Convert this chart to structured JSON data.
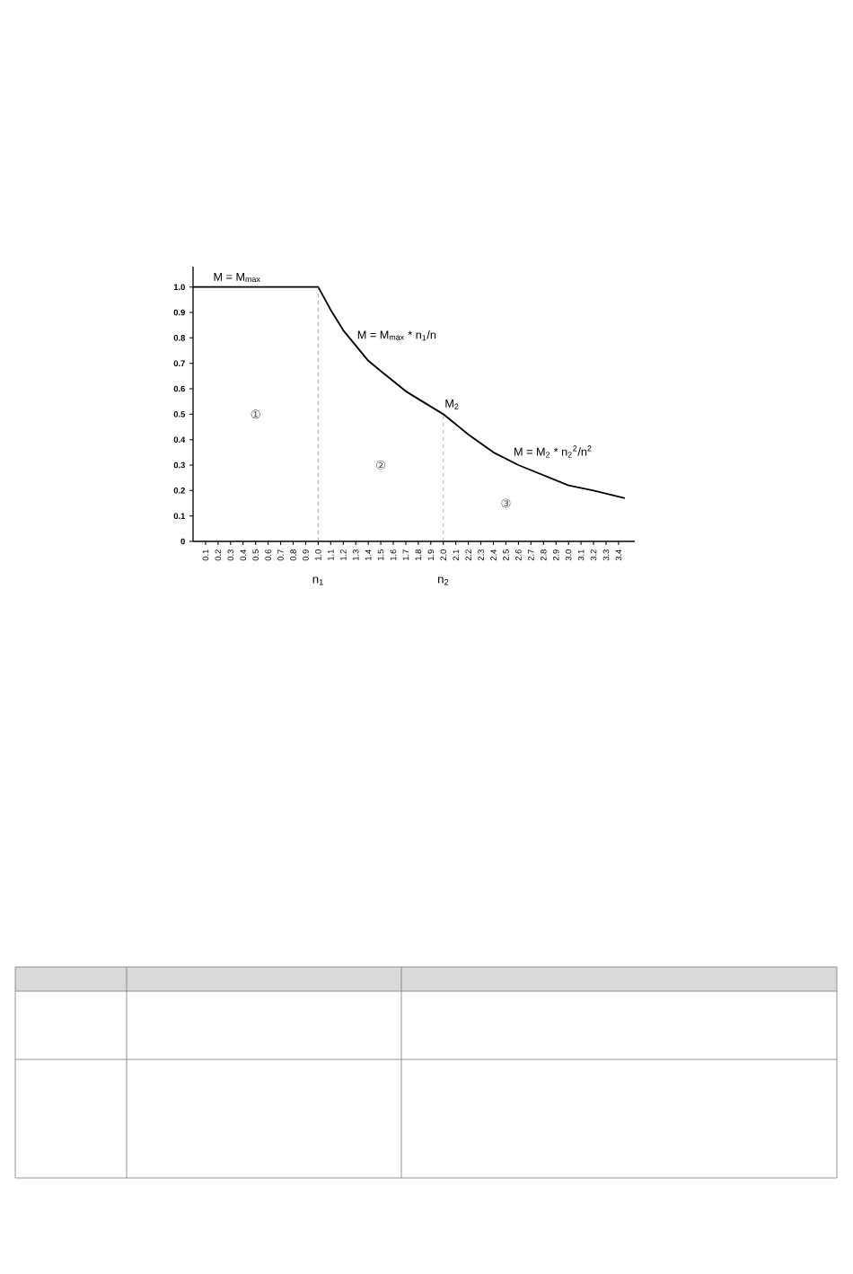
{
  "chart_data": {
    "type": "line",
    "annotations": [
      {
        "text": "M = M$_{max}$",
        "x": 0.15,
        "y": 1.0
      },
      {
        "text": "M = M$_{max}$ * n$_{1}$/n",
        "x": 1.3,
        "y": 0.77
      },
      {
        "text": "M$_{2}$",
        "x": 2.0,
        "y": 0.5
      },
      {
        "text": "M = M$_{2}$ * n$_{2}$$^{2}$/n$^{2}$",
        "x": 2.55,
        "y": 0.31
      },
      "①",
      "②",
      "③"
    ],
    "series": [
      {
        "color": "#000000",
        "x": [
          0,
          1.0,
          1.1,
          1.2,
          1.3,
          1.4,
          1.5,
          1.6,
          1.7,
          1.8,
          1.9,
          2.0,
          2.2,
          2.4,
          2.6,
          2.8,
          3.0,
          3.2,
          3.45
        ],
        "values": [
          1.0,
          1.0,
          0.91,
          0.83,
          0.77,
          0.71,
          0.67,
          0.63,
          0.59,
          0.56,
          0.53,
          0.5,
          0.42,
          0.35,
          0.3,
          0.26,
          0.22,
          0.2,
          0.17
        ]
      }
    ],
    "xlim": [
      0,
      3.53
    ],
    "ylim": [
      0,
      1.08
    ],
    "xticks": [
      0.1,
      0.2,
      0.3,
      0.4,
      0.5,
      0.6,
      0.7,
      0.8,
      0.9,
      {
        "value": 1,
        "label": "1.0"
      },
      1.1,
      1.2,
      1.3,
      1.4,
      1.5,
      1.6,
      1.7,
      1.8,
      1.9,
      {
        "value": 2,
        "label": "2.0"
      },
      2.1,
      2.2,
      2.3,
      2.4,
      2.5,
      2.6,
      2.7,
      2.8,
      2.9,
      {
        "value": 3,
        "label": "3.0"
      },
      3.1,
      3.2,
      3.3,
      3.4
    ],
    "yticks": [
      0,
      0.1,
      0.2,
      0.3,
      0.4,
      0.5,
      0.6,
      0.7,
      0.8,
      0.9,
      {
        "value": 1,
        "label": "1.0"
      }
    ],
    "ref_lines": [
      {
        "axis": "x",
        "value": 1.0,
        "label": "n$_{1}$",
        "color": "#808080",
        "line_style": "dashed"
      },
      {
        "axis": "x",
        "value": 2.0,
        "label": "n$_{2}$",
        "color": "#808080",
        "line_style": "dashed"
      }
    ]
  }
}
